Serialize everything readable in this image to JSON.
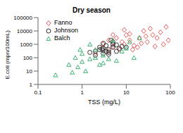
{
  "chart_data": {
    "type": "scatter",
    "title": "Dry season",
    "x_label": "TSS (mg/L)",
    "y_label": "E.coli (mpn/100mL)",
    "log": true,
    "grid": false,
    "legend": "upper left",
    "xlim": [
      0.1,
      100
    ],
    "xticks": [
      0.1,
      1,
      10,
      100
    ],
    "ylim": [
      1,
      100000
    ],
    "yticks": [
      1,
      10,
      100,
      1000,
      10000,
      100000
    ],
    "series": [
      {
        "name": "Fanno",
        "color": "#ee5a5a",
        "marker": "diamond",
        "x": [
          3,
          4,
          5,
          6,
          8,
          10,
          12,
          15,
          20,
          25,
          30,
          40,
          50,
          60,
          80,
          90,
          7,
          5,
          9,
          18,
          35,
          70,
          12,
          4,
          22,
          2,
          45,
          14,
          28,
          9
        ],
        "values": [
          1000,
          2000,
          700,
          3000,
          1500,
          5000,
          2000,
          800,
          3000,
          10000,
          1500,
          5000,
          3000,
          8000,
          20000,
          2000,
          400,
          5000,
          1000,
          600,
          15000,
          1000,
          6000,
          300,
          1200,
          200,
          700,
          400,
          4000,
          12000
        ]
      },
      {
        "name": "Johnson",
        "color": "#333333",
        "marker": "circle",
        "x": [
          2,
          2.5,
          3,
          3,
          3.5,
          4,
          4,
          5,
          5,
          6,
          2,
          3,
          7,
          4.5,
          2.5,
          3.5,
          6,
          8,
          1.5,
          3,
          4,
          5,
          2.8,
          10
        ],
        "values": [
          300,
          400,
          500,
          200,
          800,
          400,
          250,
          600,
          1500,
          300,
          150,
          1200,
          500,
          2000,
          600,
          300,
          900,
          700,
          250,
          350,
          180,
          1000,
          450,
          600
        ]
      },
      {
        "name": "Balch",
        "color": "#3cb371",
        "marker": "triangle",
        "x": [
          0.25,
          0.5,
          0.7,
          0.8,
          1,
          1,
          1.2,
          1.5,
          2,
          2,
          3,
          3,
          5,
          6,
          8,
          10,
          15,
          20,
          1.5,
          0.9,
          4,
          2.5,
          12,
          0.6
        ],
        "values": [
          5,
          30,
          100,
          20,
          50,
          200,
          10,
          80,
          100,
          400,
          40,
          150,
          2000,
          60,
          300,
          500,
          100,
          3000,
          1000,
          400,
          80,
          30,
          1500,
          8
        ]
      }
    ]
  }
}
